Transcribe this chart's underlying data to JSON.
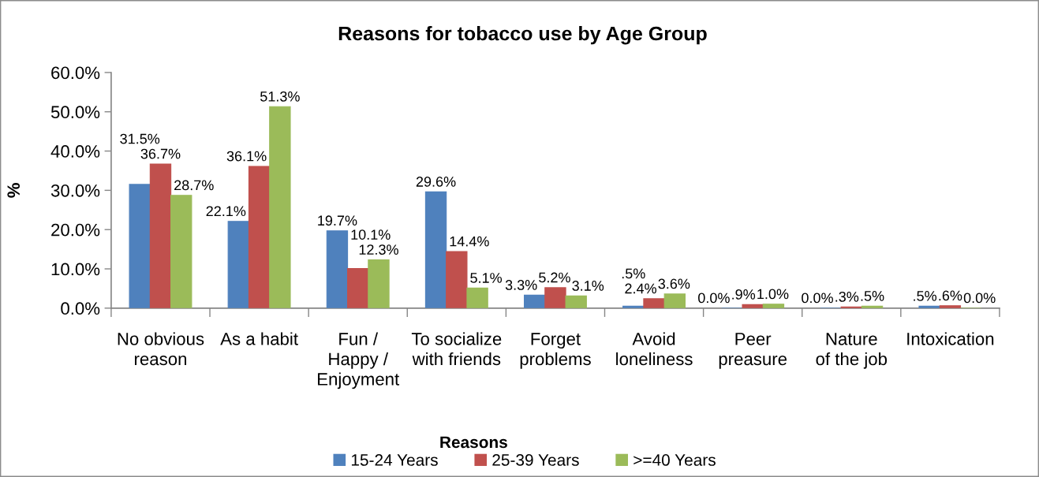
{
  "chart_data": {
    "type": "bar",
    "title": "Reasons for tobacco use by Age Group",
    "xlabel": "Reasons",
    "ylabel": "%",
    "categories": [
      "No obvious reason",
      "As a habit",
      "Fun / Happy / Enjoyment",
      "To socialize with friends",
      "Forget problems",
      "Avoid loneliness",
      "Peer preasure",
      "Nature of the job",
      "Intoxication"
    ],
    "series": [
      {
        "name": "15-24 Years",
        "color": "#4f81bd",
        "values": [
          31.5,
          22.1,
          19.7,
          29.6,
          3.3,
          0.5,
          0.0,
          0.0,
          0.5
        ],
        "value_labels": [
          "31.5%",
          "22.1%",
          "19.7%",
          "29.6%",
          "3.3%",
          ".5%",
          "0.0%",
          "0.0%",
          ".5%"
        ]
      },
      {
        "name": "25-39 Years",
        "color": "#c0504d",
        "values": [
          36.7,
          36.1,
          10.1,
          14.4,
          5.2,
          2.4,
          0.9,
          0.3,
          0.6
        ],
        "value_labels": [
          "36.7%",
          "36.1%",
          "10.1%",
          "14.4%",
          "5.2%",
          "2.4%",
          ".9%",
          ".3%",
          ".6%"
        ]
      },
      {
        "name": ">=40 Years",
        "color": "#9bbb59",
        "values": [
          28.7,
          51.3,
          12.3,
          5.1,
          3.1,
          3.6,
          1.0,
          0.5,
          0.0
        ],
        "value_labels": [
          "28.7%",
          "51.3%",
          "12.3%",
          "5.1%",
          "3.1%",
          "3.6%",
          "1.0%",
          ".5%",
          "0.0%"
        ]
      }
    ],
    "ylim": [
      0,
      60
    ],
    "yticks": [
      {
        "value": 0,
        "label": "0.0%"
      },
      {
        "value": 10,
        "label": "10.0%"
      },
      {
        "value": 20,
        "label": "20.0%"
      },
      {
        "value": 30,
        "label": "30.0%"
      },
      {
        "value": 40,
        "label": "40.0%"
      },
      {
        "value": 50,
        "label": "50.0%"
      },
      {
        "value": 60,
        "label": "60.0%"
      }
    ],
    "legend": "bottom"
  }
}
